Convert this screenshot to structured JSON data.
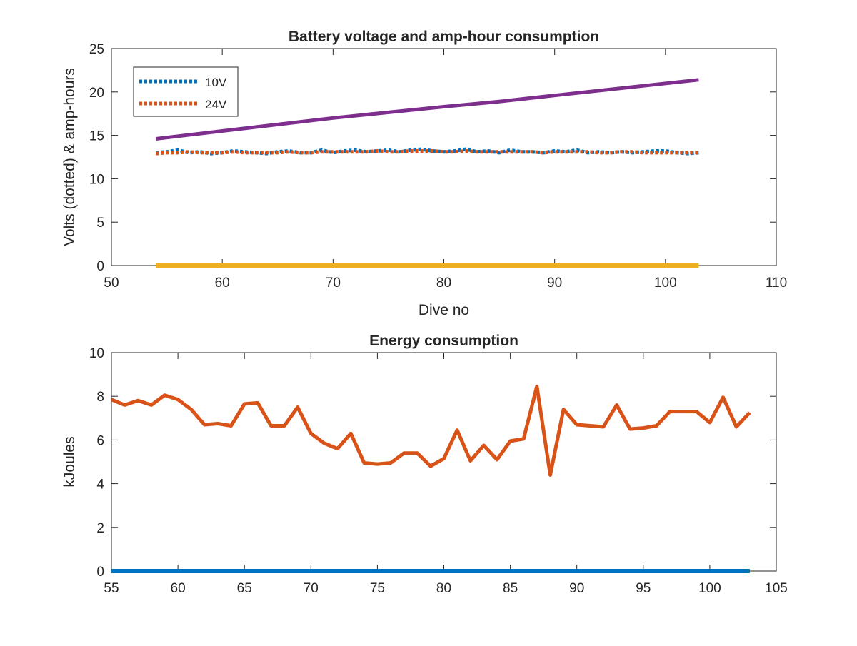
{
  "chart_data": [
    {
      "type": "line",
      "title": "Battery voltage and amp-hour consumption",
      "xlabel": "Dive no",
      "ylabel": "Volts (dotted) & amp-hours",
      "xlim": [
        50,
        110
      ],
      "ylim": [
        0,
        25
      ],
      "xticks": [
        50,
        60,
        70,
        80,
        90,
        100,
        110
      ],
      "yticks": [
        0,
        5,
        10,
        15,
        20,
        25
      ],
      "legend": {
        "placement": "top-left",
        "entries": [
          "10V",
          "24V"
        ]
      },
      "grid": false,
      "series": [
        {
          "name": "10V",
          "style": "dotted",
          "color": "#0072BD",
          "x": [
            54,
            55,
            56,
            57,
            58,
            59,
            60,
            61,
            62,
            63,
            64,
            65,
            66,
            67,
            68,
            69,
            70,
            71,
            72,
            73,
            74,
            75,
            76,
            77,
            78,
            79,
            80,
            81,
            82,
            83,
            84,
            85,
            86,
            87,
            88,
            89,
            90,
            91,
            92,
            93,
            94,
            95,
            96,
            97,
            98,
            99,
            100,
            101,
            102,
            103
          ],
          "y": [
            13.0,
            13.1,
            13.3,
            13.0,
            13.1,
            12.9,
            13.0,
            13.2,
            13.1,
            13.0,
            12.9,
            13.1,
            13.2,
            13.0,
            13.0,
            13.3,
            13.0,
            13.2,
            13.3,
            13.1,
            13.2,
            13.3,
            13.1,
            13.3,
            13.4,
            13.2,
            13.1,
            13.2,
            13.4,
            13.1,
            13.2,
            13.0,
            13.3,
            13.1,
            13.1,
            13.0,
            13.2,
            13.1,
            13.3,
            13.0,
            13.1,
            13.0,
            13.1,
            13.0,
            13.1,
            13.2,
            13.2,
            13.0,
            12.9,
            13.0
          ]
        },
        {
          "name": "24V",
          "style": "dotted",
          "color": "#D95319",
          "x": [
            54,
            55,
            56,
            57,
            58,
            59,
            60,
            61,
            62,
            63,
            64,
            65,
            66,
            67,
            68,
            69,
            70,
            71,
            72,
            73,
            74,
            75,
            76,
            77,
            78,
            79,
            80,
            81,
            82,
            83,
            84,
            85,
            86,
            87,
            88,
            89,
            90,
            91,
            92,
            93,
            94,
            95,
            96,
            97,
            98,
            99,
            100,
            101,
            102,
            103
          ],
          "y": [
            12.9,
            13.0,
            13.0,
            13.1,
            13.0,
            13.0,
            13.0,
            13.1,
            13.0,
            13.0,
            13.0,
            13.0,
            13.1,
            13.0,
            13.0,
            13.1,
            13.1,
            13.1,
            13.1,
            13.1,
            13.2,
            13.1,
            13.1,
            13.2,
            13.2,
            13.2,
            13.1,
            13.1,
            13.2,
            13.1,
            13.1,
            13.1,
            13.1,
            13.1,
            13.1,
            13.0,
            13.1,
            13.1,
            13.1,
            13.1,
            13.0,
            13.0,
            13.1,
            13.1,
            13.0,
            13.0,
            13.0,
            13.0,
            13.0,
            13.0
          ]
        },
        {
          "color": "#7E2F8E",
          "x": [
            54,
            60,
            70,
            80,
            85,
            90,
            103
          ],
          "y": [
            14.6,
            15.5,
            17.0,
            18.3,
            18.9,
            19.6,
            21.4
          ]
        },
        {
          "color": "#EDB120",
          "x": [
            54,
            103
          ],
          "y": [
            0,
            0
          ]
        }
      ]
    },
    {
      "type": "line",
      "title": "Energy consumption",
      "xlabel": "",
      "ylabel": "kJoules",
      "xlim": [
        55,
        105
      ],
      "ylim": [
        0,
        10
      ],
      "xticks": [
        55,
        60,
        65,
        70,
        75,
        80,
        85,
        90,
        95,
        100,
        105
      ],
      "yticks": [
        0,
        2,
        4,
        6,
        8,
        10
      ],
      "grid": false,
      "series": [
        {
          "color": "#0072BD",
          "x": [
            55,
            103
          ],
          "y": [
            0,
            0
          ]
        },
        {
          "color": "#D95319",
          "x": [
            55,
            56,
            57,
            58,
            59,
            60,
            61,
            62,
            63,
            64,
            65,
            66,
            67,
            68,
            69,
            70,
            71,
            72,
            73,
            74,
            75,
            76,
            77,
            78,
            79,
            80,
            81,
            82,
            83,
            84,
            85,
            86,
            87,
            88,
            89,
            90,
            91,
            92,
            93,
            94,
            95,
            96,
            97,
            98,
            99,
            100,
            101,
            102,
            103
          ],
          "y": [
            7.85,
            7.6,
            7.8,
            7.6,
            8.05,
            7.85,
            7.4,
            6.7,
            6.75,
            6.65,
            7.65,
            7.7,
            6.65,
            6.65,
            7.5,
            6.3,
            5.85,
            5.6,
            6.3,
            4.95,
            4.9,
            4.95,
            5.4,
            5.4,
            4.8,
            5.15,
            6.45,
            5.05,
            5.75,
            5.1,
            5.95,
            6.05,
            8.45,
            4.4,
            7.4,
            6.7,
            6.65,
            6.6,
            7.6,
            6.5,
            6.55,
            6.65,
            7.3,
            7.3,
            7.3,
            6.8,
            7.95,
            6.6,
            7.25
          ]
        }
      ]
    }
  ]
}
